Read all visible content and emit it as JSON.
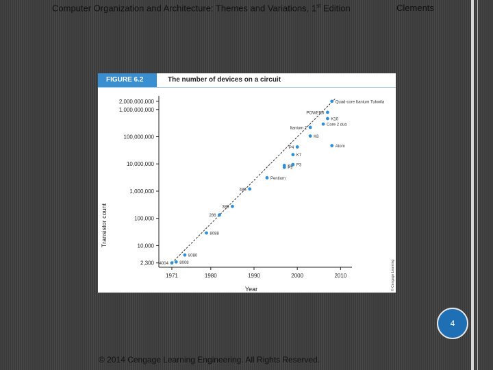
{
  "header": {
    "title_main": "Computer Organization and Architecture: Themes and Variations, 1",
    "title_sup": "st",
    "title_end": " Edition",
    "author": "Clements"
  },
  "figure": {
    "label": "FIGURE 6.2",
    "title": "The number of devices on a circuit",
    "side_credit": "© Cengage Learning"
  },
  "chart_data": {
    "type": "scatter",
    "title": "The number of devices on a circuit",
    "xlabel": "Year",
    "ylabel": "Transistor count",
    "yscale": "log",
    "xlim": [
      1968,
      2012
    ],
    "ylim": [
      1600,
      2500000000
    ],
    "xticks": [
      1971,
      1980,
      1990,
      2000,
      2010
    ],
    "yticks": [
      {
        "value": 2300,
        "label": "2,300"
      },
      {
        "value": 10000,
        "label": "10,000"
      },
      {
        "value": 100000,
        "label": "100,000"
      },
      {
        "value": 1000000,
        "label": "1,000,000"
      },
      {
        "value": 10000000,
        "label": "10,000,000"
      },
      {
        "value": 100000000,
        "label": "100,000,000"
      },
      {
        "value": 1000000000,
        "label": "1,000,000,000"
      },
      {
        "value": 2000000000,
        "label": "2,000,000,000"
      }
    ],
    "points": [
      {
        "name": "4004",
        "year": 1971,
        "count": 2300
      },
      {
        "name": "8008",
        "year": 1972,
        "count": 2500
      },
      {
        "name": "8080",
        "year": 1974,
        "count": 4500
      },
      {
        "name": "8088",
        "year": 1979,
        "count": 29000
      },
      {
        "name": "286",
        "year": 1982,
        "count": 134000
      },
      {
        "name": "386",
        "year": 1985,
        "count": 275000
      },
      {
        "name": "486",
        "year": 1989,
        "count": 1200000
      },
      {
        "name": "Pentium",
        "year": 1993,
        "count": 3100000
      },
      {
        "name": "P2",
        "year": 1997,
        "count": 7500000
      },
      {
        "name": "K6",
        "year": 1997,
        "count": 8800000
      },
      {
        "name": "P3",
        "year": 1999,
        "count": 9500000
      },
      {
        "name": "K7",
        "year": 1999,
        "count": 22000000
      },
      {
        "name": "P4",
        "year": 2000,
        "count": 42000000
      },
      {
        "name": "K8",
        "year": 2003,
        "count": 105900000
      },
      {
        "name": "Itanium 2",
        "year": 2003,
        "count": 220000000
      },
      {
        "name": "Atom",
        "year": 2008,
        "count": 47000000
      },
      {
        "name": "Core 2 duo",
        "year": 2006,
        "count": 291000000
      },
      {
        "name": "K10",
        "year": 2007,
        "count": 463000000
      },
      {
        "name": "POWER6",
        "year": 2007,
        "count": 789000000
      },
      {
        "name": "Quad-core Itanium Tukwila",
        "year": 2008,
        "count": 2000000000
      }
    ],
    "trendline": {
      "from": {
        "year": 1971,
        "count": 2300
      },
      "to": {
        "year": 2008,
        "count": 2000000000
      }
    }
  },
  "page_number": "4",
  "footer": {
    "copyright": "© 2014 Cengage Learning Engineering. All Rights Reserved."
  }
}
